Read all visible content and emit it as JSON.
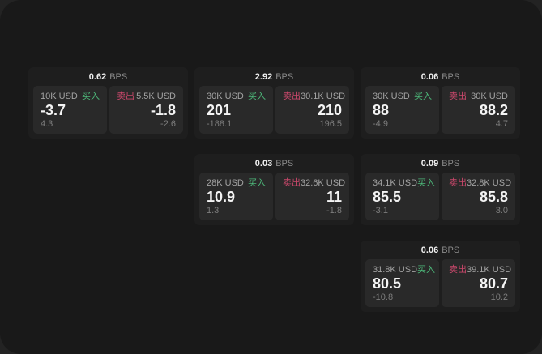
{
  "labels": {
    "bps": "BPS",
    "buy": "买入",
    "sell": "卖出"
  },
  "colors": {
    "buy": "#4db97a",
    "sell": "#c9486b"
  },
  "cards": [
    {
      "bps": "0.62",
      "buy": {
        "amount": "10K USD",
        "value": "-3.7",
        "sub": "4.3"
      },
      "sell": {
        "amount": "5.5K USD",
        "value": "-1.8",
        "sub": "-2.6"
      }
    },
    {
      "bps": "2.92",
      "buy": {
        "amount": "30K USD",
        "value": "201",
        "sub": "-188.1"
      },
      "sell": {
        "amount": "30.1K USD",
        "value": "210",
        "sub": "196.5"
      }
    },
    {
      "bps": "0.06",
      "buy": {
        "amount": "30K USD",
        "value": "88",
        "sub": "-4.9"
      },
      "sell": {
        "amount": "30K USD",
        "value": "88.2",
        "sub": "4.7"
      }
    },
    {
      "bps": "0.03",
      "buy": {
        "amount": "28K USD",
        "value": "10.9",
        "sub": "1.3"
      },
      "sell": {
        "amount": "32.6K USD",
        "value": "11",
        "sub": "-1.8"
      }
    },
    {
      "bps": "0.09",
      "buy": {
        "amount": "34.1K USD",
        "value": "85.5",
        "sub": "-3.1"
      },
      "sell": {
        "amount": "32.8K USD",
        "value": "85.8",
        "sub": "3.0"
      }
    },
    {
      "bps": "0.06",
      "buy": {
        "amount": "31.8K USD",
        "value": "80.5",
        "sub": "-10.8"
      },
      "sell": {
        "amount": "39.1K USD",
        "value": "80.7",
        "sub": "10.2"
      }
    }
  ]
}
